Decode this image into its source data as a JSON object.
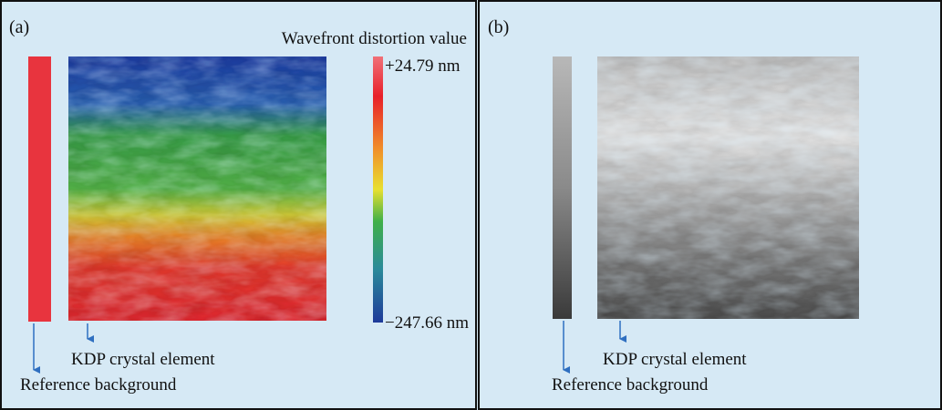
{
  "panel_a": {
    "label": "(a)",
    "colorbar_title": "Wavefront distortion value",
    "colorbar_max": "+24.79 nm",
    "colorbar_min": "−247.66 nm",
    "crystal_label": "KDP crystal element",
    "background_label": "Reference background"
  },
  "panel_b": {
    "label": "(b)",
    "crystal_label": "KDP crystal element",
    "background_label": "Reference background"
  }
}
